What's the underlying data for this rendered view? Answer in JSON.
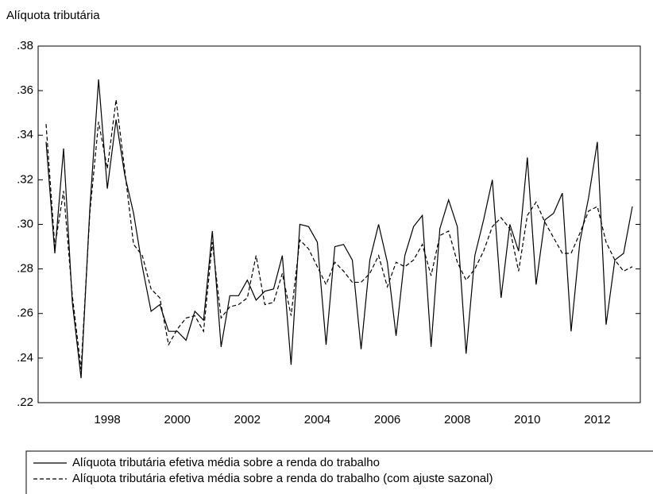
{
  "chart_data": {
    "type": "line",
    "title": "Alíquota tributária",
    "categories": [
      null,
      null,
      null,
      null,
      null,
      null,
      null,
      "1998",
      null,
      null,
      null,
      null,
      null,
      null,
      null,
      "2000",
      null,
      null,
      null,
      null,
      null,
      null,
      null,
      "2002",
      null,
      null,
      null,
      null,
      null,
      null,
      null,
      "2004",
      null,
      null,
      null,
      null,
      null,
      null,
      null,
      "2006",
      null,
      null,
      null,
      null,
      null,
      null,
      null,
      "2008",
      null,
      null,
      null,
      null,
      null,
      null,
      null,
      "2010",
      null,
      null,
      null,
      null,
      null,
      null,
      null,
      "2012",
      null,
      null,
      null,
      null
    ],
    "series": [
      {
        "name": "Alíquota tributária efetiva média sobre a renda do trabalho",
        "color": "#000000",
        "dash": "solid",
        "values": [
          0.337,
          0.287,
          0.334,
          0.265,
          0.231,
          0.307,
          0.365,
          0.316,
          0.347,
          0.322,
          0.305,
          0.281,
          0.261,
          0.264,
          0.252,
          0.252,
          0.248,
          0.261,
          0.257,
          0.297,
          0.245,
          0.268,
          0.268,
          0.275,
          0.266,
          0.27,
          0.271,
          0.286,
          0.237,
          0.3,
          0.299,
          0.292,
          0.246,
          0.29,
          0.291,
          0.284,
          0.244,
          0.284,
          0.3,
          0.283,
          0.25,
          0.286,
          0.299,
          0.304,
          0.245,
          0.298,
          0.311,
          0.299,
          0.242,
          0.286,
          0.302,
          0.32,
          0.267,
          0.3,
          0.288,
          0.33,
          0.273,
          0.302,
          0.305,
          0.314,
          0.252,
          0.292,
          0.312,
          0.337,
          0.255,
          0.284,
          0.287,
          0.308
        ]
      },
      {
        "name": "Alíquota tributária efetiva média sobre a renda do trabalho (com ajuste sazonal)",
        "color": "#000000",
        "dash": "dashed",
        "values": [
          0.345,
          0.29,
          0.315,
          0.268,
          0.235,
          0.305,
          0.346,
          0.325,
          0.356,
          0.324,
          0.291,
          0.286,
          0.271,
          0.267,
          0.246,
          0.253,
          0.258,
          0.259,
          0.252,
          0.292,
          0.258,
          0.263,
          0.264,
          0.267,
          0.286,
          0.264,
          0.265,
          0.278,
          0.259,
          0.293,
          0.289,
          0.281,
          0.273,
          0.283,
          0.279,
          0.274,
          0.274,
          0.278,
          0.286,
          0.272,
          0.283,
          0.281,
          0.284,
          0.291,
          0.277,
          0.295,
          0.297,
          0.283,
          0.275,
          0.28,
          0.288,
          0.299,
          0.303,
          0.298,
          0.279,
          0.304,
          0.31,
          0.301,
          0.294,
          0.287,
          0.287,
          0.296,
          0.306,
          0.308,
          0.292,
          0.284,
          0.279,
          0.281
        ]
      }
    ],
    "ylim": [
      0.22,
      0.38
    ],
    "yticks": [
      {
        "value": 0.22,
        "label": ".22"
      },
      {
        "value": 0.24,
        "label": ".24"
      },
      {
        "value": 0.26,
        "label": ".26"
      },
      {
        "value": 0.28,
        "label": ".28"
      },
      {
        "value": 0.3,
        "label": ".30"
      },
      {
        "value": 0.32,
        "label": ".32"
      },
      {
        "value": 0.34,
        "label": ".34"
      },
      {
        "value": 0.36,
        "label": ".36"
      },
      {
        "value": 0.38,
        "label": ".38"
      }
    ],
    "grid": false
  }
}
